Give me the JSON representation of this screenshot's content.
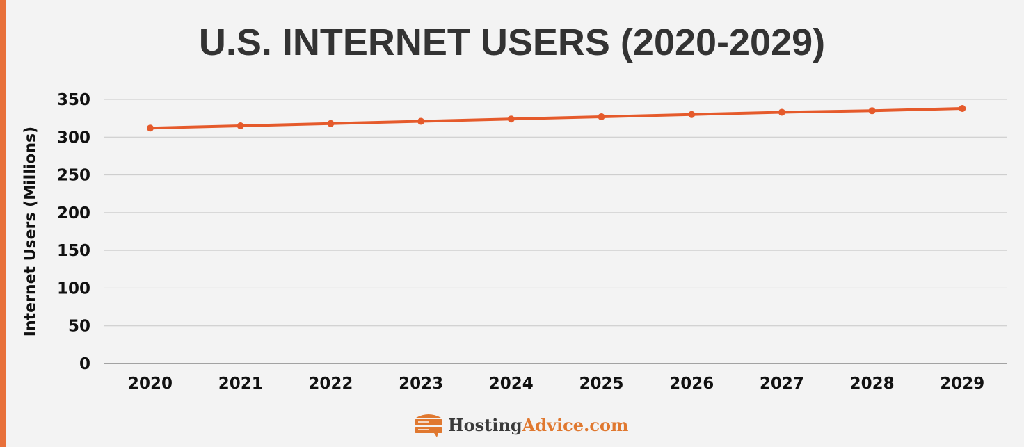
{
  "chart_data": {
    "type": "line",
    "title": "U.S. INTERNET USERS (2020-2029)",
    "xlabel": "",
    "ylabel": "Internet Users (Millions)",
    "categories": [
      "2020",
      "2021",
      "2022",
      "2023",
      "2024",
      "2025",
      "2026",
      "2027",
      "2028",
      "2029"
    ],
    "values": [
      312,
      315,
      318,
      321,
      324,
      327,
      330,
      333,
      335,
      338
    ],
    "ylim": [
      0,
      350
    ],
    "yticks": [
      "0",
      "50",
      "100",
      "150",
      "200",
      "250",
      "300",
      "350"
    ],
    "grid": true,
    "line_color": "#e55a2b"
  },
  "branding": {
    "logo_part1": "Hosting",
    "logo_part2": "Advice.com",
    "accent": "#e8703a"
  }
}
